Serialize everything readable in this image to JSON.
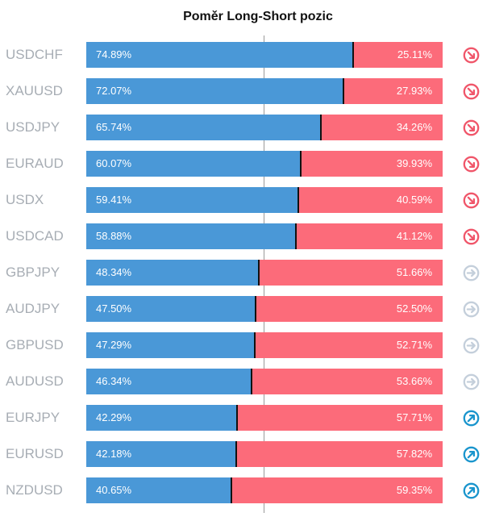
{
  "chart_data": {
    "type": "bar",
    "title": "Poměr Long-Short pozic",
    "rows": [
      {
        "symbol": "USDCHF",
        "long": 74.89,
        "short": 25.11,
        "long_label": "74.89%",
        "short_label": "25.11%",
        "signal": "down"
      },
      {
        "symbol": "XAUUSD",
        "long": 72.07,
        "short": 27.93,
        "long_label": "72.07%",
        "short_label": "27.93%",
        "signal": "down"
      },
      {
        "symbol": "USDJPY",
        "long": 65.74,
        "short": 34.26,
        "long_label": "65.74%",
        "short_label": "34.26%",
        "signal": "down"
      },
      {
        "symbol": "EURAUD",
        "long": 60.07,
        "short": 39.93,
        "long_label": "60.07%",
        "short_label": "39.93%",
        "signal": "down"
      },
      {
        "symbol": "USDX",
        "long": 59.41,
        "short": 40.59,
        "long_label": "59.41%",
        "short_label": "40.59%",
        "signal": "down"
      },
      {
        "symbol": "USDCAD",
        "long": 58.88,
        "short": 41.12,
        "long_label": "58.88%",
        "short_label": "41.12%",
        "signal": "down"
      },
      {
        "symbol": "GBPJPY",
        "long": 48.34,
        "short": 51.66,
        "long_label": "48.34%",
        "short_label": "51.66%",
        "signal": "neutral"
      },
      {
        "symbol": "AUDJPY",
        "long": 47.5,
        "short": 52.5,
        "long_label": "47.50%",
        "short_label": "52.50%",
        "signal": "neutral"
      },
      {
        "symbol": "GBPUSD",
        "long": 47.29,
        "short": 52.71,
        "long_label": "47.29%",
        "short_label": "52.71%",
        "signal": "neutral"
      },
      {
        "symbol": "AUDUSD",
        "long": 46.34,
        "short": 53.66,
        "long_label": "46.34%",
        "short_label": "53.66%",
        "signal": "neutral"
      },
      {
        "symbol": "EURJPY",
        "long": 42.29,
        "short": 57.71,
        "long_label": "42.29%",
        "short_label": "57.71%",
        "signal": "up"
      },
      {
        "symbol": "EURUSD",
        "long": 42.18,
        "short": 57.82,
        "long_label": "42.18%",
        "short_label": "57.82%",
        "signal": "up"
      },
      {
        "symbol": "NZDUSD",
        "long": 40.65,
        "short": 59.35,
        "long_label": "40.65%",
        "short_label": "59.35%",
        "signal": "up"
      }
    ],
    "reference_line": 50,
    "xlim": [
      0,
      100
    ]
  },
  "colors": {
    "long": "#4a98d7",
    "short": "#fc6b7a",
    "symbol_text": "#a7adb4",
    "signal_down": "#f0566a",
    "signal_neutral": "#c4cfdb",
    "signal_up": "#1a95cd"
  },
  "icons": {
    "down": "arrow-down-right-circle-icon",
    "neutral": "arrow-right-circle-icon",
    "up": "arrow-up-right-circle-icon"
  }
}
